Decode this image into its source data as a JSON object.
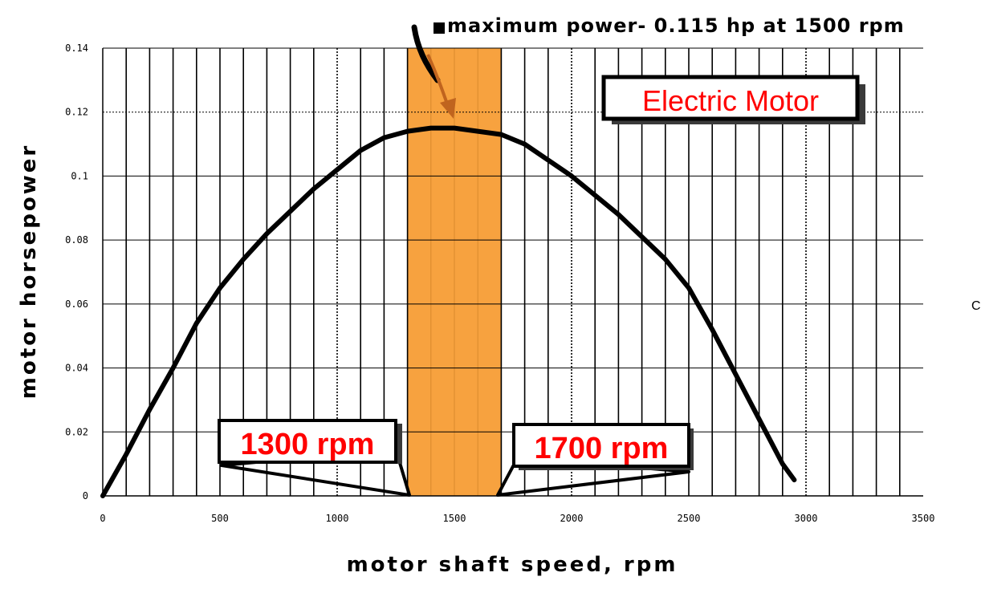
{
  "chart_data": {
    "type": "line",
    "title": "",
    "xlabel": "motor shaft speed, rpm",
    "ylabel": "motor horsepower",
    "xlim": [
      0,
      3500
    ],
    "ylim": [
      0,
      0.14
    ],
    "x_ticks": [
      0,
      500,
      1000,
      1500,
      2000,
      2500,
      3000,
      3500
    ],
    "x_tick_labels": [
      "0",
      "500",
      "1000",
      "1500",
      "2000",
      "2500",
      "3000",
      "3500"
    ],
    "y_ticks": [
      0,
      0.02,
      0.04,
      0.06,
      0.08,
      0.1,
      0.12,
      0.14
    ],
    "y_tick_labels": [
      "0",
      "0.02",
      "0.04",
      "0.06",
      "0.08",
      "0.1",
      "0.12",
      "0.14"
    ],
    "grid": true,
    "x_minor_grid_step": 100,
    "line_color": "#000000",
    "series": [
      {
        "name": "",
        "x": [
          0,
          100,
          200,
          300,
          400,
          500,
          600,
          700,
          800,
          900,
          1000,
          1100,
          1200,
          1300,
          1400,
          1500,
          1600,
          1700,
          1800,
          1900,
          2000,
          2100,
          2200,
          2300,
          2400,
          2500,
          2600,
          2700,
          2800,
          2900,
          2950
        ],
        "y": [
          0,
          0.013,
          0.027,
          0.04,
          0.054,
          0.065,
          0.074,
          0.082,
          0.089,
          0.096,
          0.102,
          0.108,
          0.112,
          0.114,
          0.115,
          0.115,
          0.114,
          0.113,
          0.11,
          0.105,
          0.1,
          0.094,
          0.088,
          0.081,
          0.074,
          0.065,
          0.052,
          0.038,
          0.024,
          0.01,
          0.005
        ]
      }
    ],
    "highlight_band": {
      "x_start": 1300,
      "x_end": 1700,
      "color": "#f7a23f"
    },
    "annotations": {
      "max_power": {
        "text": "maximum power- 0.115 hp at 1500 rpm",
        "x": 1500,
        "y": 0.115
      },
      "legend_box": {
        "text": "Electric Motor",
        "placement": "top-right"
      },
      "left_callout": {
        "text": "1300 rpm",
        "x": 1300
      },
      "right_callout": {
        "text": "1700 rpm",
        "x": 1700
      }
    },
    "stray_glyph": "C"
  }
}
